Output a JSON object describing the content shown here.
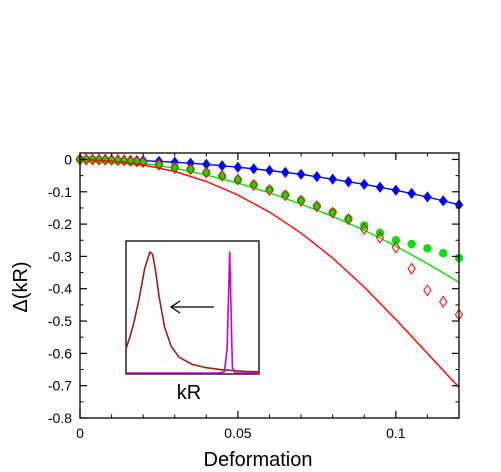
{
  "chart_data": [
    {
      "type": "line",
      "title": "",
      "xlabel": "Deformation",
      "ylabel": "Δ(kR)",
      "xlim": [
        0,
        0.12
      ],
      "ylim": [
        -0.8,
        0.02
      ],
      "x_ticks": [
        0,
        0.05,
        0.1
      ],
      "x_tick_labels": [
        "0",
        "0.05",
        "0.1"
      ],
      "y_ticks": [
        0,
        -0.1,
        -0.2,
        -0.3,
        -0.4,
        -0.5,
        -0.6,
        -0.7,
        -0.8
      ],
      "y_tick_labels": [
        "0",
        "-0.1",
        "-0.2",
        "-0.3",
        "-0.4",
        "-0.5",
        "-0.6",
        "-0.7",
        "-0.8"
      ],
      "grid": false,
      "legend": "none",
      "series": [
        {
          "style": "line",
          "color": "#0000ff",
          "x": [
            0,
            0.01,
            0.02,
            0.03,
            0.04,
            0.05,
            0.06,
            0.07,
            0.08,
            0.09,
            0.1,
            0.11,
            0.12
          ],
          "values": [
            0,
            -0.0013,
            -0.0038,
            -0.0085,
            -0.015,
            -0.024,
            -0.034,
            -0.046,
            -0.061,
            -0.077,
            -0.095,
            -0.116,
            -0.14
          ]
        },
        {
          "style": "markers",
          "marker": "diamond-filled",
          "color": "#0000ff",
          "x": [
            0,
            0.002,
            0.004,
            0.006,
            0.008,
            0.01,
            0.012,
            0.014,
            0.016,
            0.018,
            0.02,
            0.025,
            0.03,
            0.035,
            0.04,
            0.045,
            0.05,
            0.055,
            0.06,
            0.065,
            0.07,
            0.075,
            0.08,
            0.085,
            0.09,
            0.095,
            0.1,
            0.105,
            0.11,
            0.115,
            0.12
          ],
          "values": [
            0,
            0,
            -0.0001,
            -0.0002,
            -0.0006,
            -0.0013,
            -0.0018,
            -0.0025,
            -0.0031,
            -0.0035,
            -0.0038,
            -0.006,
            -0.0085,
            -0.0115,
            -0.015,
            -0.0195,
            -0.024,
            -0.029,
            -0.034,
            -0.04,
            -0.046,
            -0.053,
            -0.061,
            -0.069,
            -0.077,
            -0.086,
            -0.095,
            -0.105,
            -0.116,
            -0.128,
            -0.14
          ]
        },
        {
          "style": "markers",
          "marker": "circle-filled",
          "color": "#00e000",
          "x": [
            0,
            0.002,
            0.004,
            0.006,
            0.008,
            0.01,
            0.012,
            0.014,
            0.016,
            0.018,
            0.02,
            0.025,
            0.03,
            0.035,
            0.04,
            0.045,
            0.05,
            0.055,
            0.06,
            0.065,
            0.07,
            0.075,
            0.08,
            0.085,
            0.09,
            0.095,
            0.1,
            0.105,
            0.11,
            0.115,
            0.12
          ],
          "values": [
            0,
            -0.0003,
            -0.0008,
            -0.0014,
            -0.0021,
            -0.003,
            -0.004,
            -0.0052,
            -0.0066,
            -0.0082,
            -0.01,
            -0.016,
            -0.023,
            -0.031,
            -0.041,
            -0.052,
            -0.064,
            -0.078,
            -0.093,
            -0.109,
            -0.126,
            -0.144,
            -0.163,
            -0.183,
            -0.204,
            -0.227,
            -0.25,
            -0.262,
            -0.275,
            -0.29,
            -0.305
          ]
        },
        {
          "style": "line",
          "color": "#00e000",
          "x": [
            0,
            0.01,
            0.02,
            0.03,
            0.04,
            0.05,
            0.06,
            0.07,
            0.08,
            0.09,
            0.1,
            0.11,
            0.12
          ],
          "values": [
            0,
            -0.0035,
            -0.012,
            -0.027,
            -0.048,
            -0.073,
            -0.103,
            -0.138,
            -0.176,
            -0.219,
            -0.268,
            -0.322,
            -0.38
          ]
        },
        {
          "style": "markers",
          "marker": "diamond-open",
          "color": "#ff0000",
          "x": [
            0,
            0.002,
            0.004,
            0.006,
            0.008,
            0.01,
            0.012,
            0.014,
            0.016,
            0.018,
            0.02,
            0.025,
            0.03,
            0.035,
            0.04,
            0.045,
            0.05,
            0.055,
            0.06,
            0.065,
            0.07,
            0.075,
            0.08,
            0.085,
            0.09,
            0.095,
            0.1,
            0.105,
            0.11,
            0.115,
            0.12
          ],
          "values": [
            0,
            0,
            -0.0002,
            -0.0004,
            -0.0006,
            -0.001,
            -0.0017,
            -0.0027,
            -0.004,
            -0.0056,
            -0.0075,
            -0.016,
            -0.027,
            -0.03,
            -0.04,
            -0.05,
            -0.062,
            -0.079,
            -0.095,
            -0.111,
            -0.128,
            -0.145,
            -0.165,
            -0.185,
            -0.215,
            -0.242,
            -0.272,
            -0.338,
            -0.405,
            -0.44,
            -0.48
          ]
        },
        {
          "style": "line",
          "color": "#ff0000",
          "x": [
            0,
            0.01,
            0.02,
            0.03,
            0.04,
            0.05,
            0.06,
            0.07,
            0.08,
            0.09,
            0.1,
            0.11,
            0.12
          ],
          "values": [
            0,
            -0.0045,
            -0.017,
            -0.037,
            -0.068,
            -0.11,
            -0.163,
            -0.228,
            -0.305,
            -0.395,
            -0.495,
            -0.6,
            -0.705
          ]
        }
      ]
    },
    {
      "type": "line",
      "title": "",
      "xlabel": "kR",
      "ylabel": "",
      "legend": "none",
      "annotations": [
        "left arrow pointing from the narrow peak toward the broad peak"
      ],
      "series": [
        {
          "color": "#9b1d1d",
          "x": [
            0,
            0.03,
            0.06,
            0.1,
            0.14,
            0.18,
            0.2,
            0.22,
            0.25,
            0.29,
            0.34,
            0.4,
            0.5,
            0.6,
            0.7,
            0.8,
            0.9,
            1.0
          ],
          "values": [
            0.2,
            0.3,
            0.42,
            0.62,
            0.86,
            1.0,
            0.98,
            0.86,
            0.62,
            0.38,
            0.22,
            0.13,
            0.07,
            0.045,
            0.03,
            0.02,
            0.013,
            0.01
          ]
        },
        {
          "color": "#cc00cc",
          "x": [
            0,
            0.7,
            0.74,
            0.76,
            0.78,
            0.8,
            0.82,
            1.0
          ],
          "values": [
            0,
            0,
            0.01,
            0.2,
            1.0,
            0.04,
            0,
            0
          ]
        }
      ]
    }
  ]
}
